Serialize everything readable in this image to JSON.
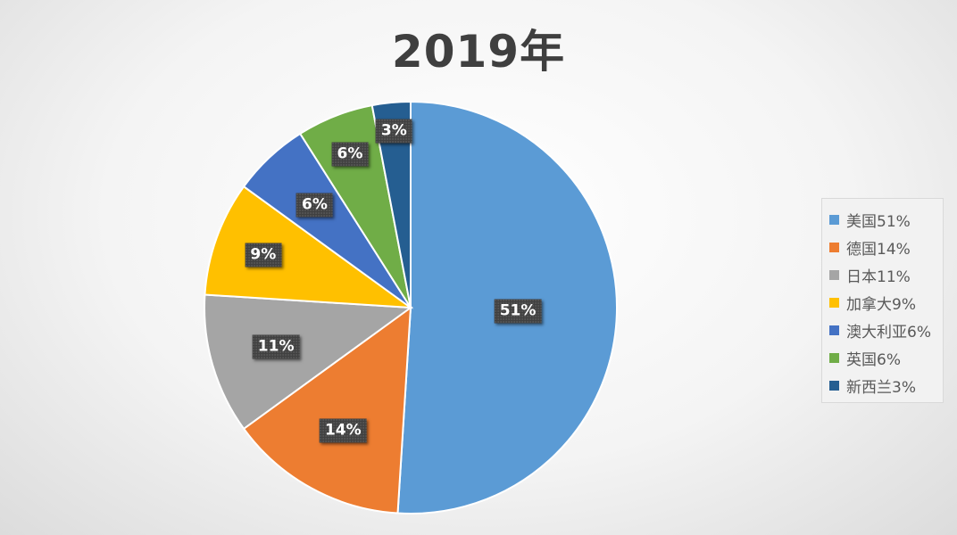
{
  "chart_data": {
    "type": "pie",
    "title": "2019年",
    "categories": [
      "美国",
      "德国",
      "日本",
      "加拿大",
      "澳大利亚",
      "英国",
      "新西兰"
    ],
    "values": [
      51,
      14,
      11,
      9,
      6,
      6,
      3
    ],
    "data_labels": [
      "51%",
      "14%",
      "11%",
      "9%",
      "6%",
      "6%",
      "3%"
    ],
    "legend_labels": [
      "美国51%",
      "德国14%",
      "日本11%",
      "加拿大9%",
      "澳大利亚6%",
      "英国6%",
      "新西兰3%"
    ],
    "colors": [
      "#5b9bd5",
      "#ed7d31",
      "#a5a5a5",
      "#ffc000",
      "#4472c4",
      "#70ad47",
      "#255e91"
    ],
    "start_angle": "12 o'clock",
    "direction": "clockwise",
    "legend_position": "right"
  }
}
